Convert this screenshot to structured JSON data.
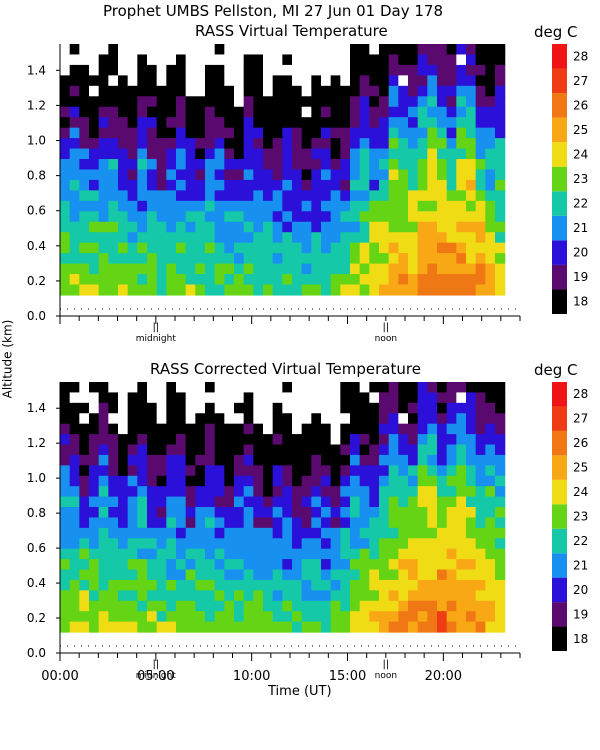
{
  "header": {
    "title": "Prophet  UMBS Pellston, MI  27 Jun 01 Day 178"
  },
  "y_axis_label": "Altitude (km)",
  "colorbar": {
    "unit": "deg C",
    "levels": [
      18,
      19,
      20,
      21,
      22,
      23,
      24,
      25,
      26,
      27,
      28
    ],
    "colors": [
      "#000000",
      "#5a0a6e",
      "#2a10d8",
      "#1890f0",
      "#14c8a8",
      "#64d414",
      "#f0dc14",
      "#f8a814",
      "#f07814",
      "#f03c14",
      "#f01414"
    ]
  },
  "chart_data": [
    {
      "type": "heatmap",
      "title": "RASS Virtual Temperature",
      "colorbar_label": "deg C",
      "ylabel": "Altitude (km)",
      "yticks": [
        "0.0",
        "0.2",
        "0.4",
        "0.6",
        "0.8",
        "1.0",
        "1.2",
        "1.4"
      ],
      "ylim": [
        0,
        1.55
      ],
      "xlim": [
        0,
        24
      ],
      "markers": [
        {
          "label": "midnight",
          "x": 5
        },
        {
          "label": "noon",
          "x": 17
        }
      ],
      "profile": {
        "hours": [
          0,
          2,
          4,
          6,
          8,
          10,
          12,
          14,
          16,
          18,
          20,
          22,
          23.5
        ],
        "surface": [
          24.5,
          24.6,
          24.3,
          24.1,
          24.0,
          23.9,
          23.6,
          23.4,
          25.2,
          26.6,
          27.2,
          26.8,
          24.5
        ]
      }
    },
    {
      "type": "heatmap",
      "title": "RASS Corrected Virtual Temperature",
      "colorbar_label": "deg C",
      "xlabel": "Time (UT)",
      "ylabel": "Altitude (km)",
      "xticks": [
        "00:00",
        "05:00",
        "10:00",
        "15:00",
        "20:00"
      ],
      "yticks": [
        "0.0",
        "0.2",
        "0.4",
        "0.6",
        "0.8",
        "1.0",
        "1.2",
        "1.4"
      ],
      "ylim": [
        0,
        1.55
      ],
      "xlim": [
        0,
        24
      ],
      "markers": [
        {
          "label": "midnight",
          "x": 5
        },
        {
          "label": "noon",
          "x": 17
        }
      ],
      "profile": {
        "hours": [
          0,
          2,
          4,
          6,
          8,
          10,
          12,
          14,
          16,
          18,
          20,
          22,
          23.5
        ],
        "surface": [
          24.8,
          24.9,
          24.6,
          24.3,
          24.2,
          24.0,
          23.7,
          23.6,
          25.3,
          26.7,
          27.3,
          26.9,
          24.6
        ]
      }
    }
  ]
}
